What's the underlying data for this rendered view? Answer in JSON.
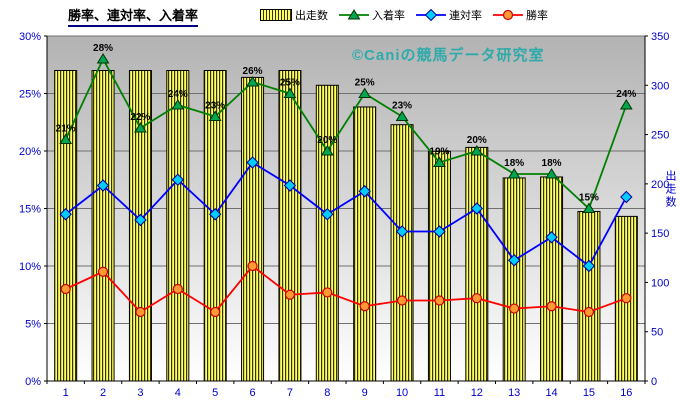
{
  "chart": {
    "title": "勝率、連対率、入着率",
    "watermark": "©Caniの競馬データ研究室"
  },
  "chart_data": {
    "type": "combo-bar-line",
    "title": "勝率、連対率、入着率",
    "categories": [
      "1",
      "2",
      "3",
      "4",
      "5",
      "6",
      "7",
      "8",
      "9",
      "10",
      "11",
      "12",
      "13",
      "14",
      "15",
      "16"
    ],
    "bar_series": {
      "name": "出走数",
      "axis": "right",
      "values": [
        315,
        315,
        315,
        315,
        315,
        308,
        315,
        300,
        278,
        260,
        233,
        237,
        206,
        207,
        172,
        167
      ],
      "fill": "#ffff66",
      "stripe": "#333300",
      "border": "#000000"
    },
    "line_series": [
      {
        "name": "入着率",
        "axis": "left",
        "color": "#008000",
        "marker": "triangle",
        "marker_fill": "#00a550",
        "marker_stroke": "#003300",
        "values": [
          21,
          28,
          22,
          24,
          23,
          26,
          25,
          20,
          25,
          23,
          19,
          20,
          18,
          18,
          15,
          24
        ],
        "labels": [
          "21%",
          "28%",
          "22%",
          "24%",
          "23%",
          "26%",
          "25%",
          "20%",
          "25%",
          "23%",
          "19%",
          "20%",
          "18%",
          "18%",
          "15%",
          "24%"
        ]
      },
      {
        "name": "連対率",
        "axis": "left",
        "color": "#0000ff",
        "marker": "diamond",
        "marker_fill": "#00ccff",
        "marker_stroke": "#000099",
        "values": [
          14.5,
          17,
          14,
          17.5,
          14.5,
          19,
          17,
          14.5,
          16.5,
          13,
          13,
          15,
          10.5,
          12.5,
          10,
          16
        ]
      },
      {
        "name": "勝率",
        "axis": "left",
        "color": "#ff0000",
        "marker": "circle",
        "marker_fill": "#ff9933",
        "marker_stroke": "#cc0000",
        "values": [
          8,
          9.5,
          6,
          8,
          6,
          10,
          7.5,
          7.7,
          6.5,
          7,
          7,
          7.2,
          6.3,
          6.5,
          6,
          7.2
        ]
      }
    ],
    "left_axis": {
      "min": 0,
      "max": 30,
      "ticks": [
        {
          "v": 30,
          "label": "30%"
        },
        {
          "v": 25,
          "label": "25%"
        },
        {
          "v": 20,
          "label": "20%"
        },
        {
          "v": 15,
          "label": "15%"
        },
        {
          "v": 10,
          "label": "10%"
        },
        {
          "v": 5,
          "label": "5%"
        },
        {
          "v": 0,
          "label": "0%"
        }
      ]
    },
    "right_axis": {
      "min": 0,
      "max": 350,
      "label": "出走数",
      "ticks": [
        "350",
        "300",
        "250",
        "200",
        "150",
        "100",
        "50",
        "0"
      ]
    },
    "grid": {
      "color": "#707070",
      "values": [
        5,
        10,
        15,
        20,
        25,
        30
      ]
    },
    "axis_text_color": "#0000cc",
    "data_label_color": "#000000",
    "plot_bg": {
      "top": "#b3b3b3",
      "bottom": "#ffffff"
    },
    "legend_position": "top"
  }
}
